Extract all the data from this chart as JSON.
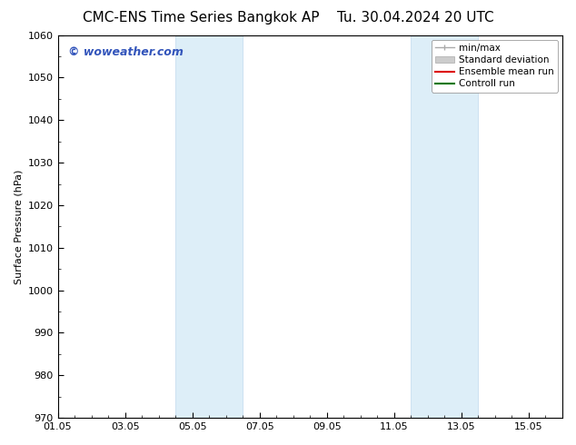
{
  "title_left": "CMC-ENS Time Series Bangkok AP",
  "title_right": "Tu. 30.04.2024 20 UTC",
  "ylabel": "Surface Pressure (hPa)",
  "ylim": [
    970,
    1060
  ],
  "yticks": [
    970,
    980,
    990,
    1000,
    1010,
    1020,
    1030,
    1040,
    1050,
    1060
  ],
  "xtick_labels": [
    "01.05",
    "03.05",
    "05.05",
    "07.05",
    "09.05",
    "11.05",
    "13.05",
    "15.05"
  ],
  "xtick_positions": [
    0,
    2,
    4,
    6,
    8,
    10,
    12,
    14
  ],
  "xlim": [
    0,
    15
  ],
  "shaded_bands": [
    {
      "x_start": 3.5,
      "x_end": 5.5
    },
    {
      "x_start": 10.5,
      "x_end": 12.5
    }
  ],
  "shaded_color": "#ddeef8",
  "shaded_edge_color": "#c0d8ee",
  "background_color": "#ffffff",
  "watermark_text": "© woweather.com",
  "watermark_color": "#3355bb",
  "legend_items": [
    {
      "label": "min/max",
      "color": "#aaaaaa",
      "lw": 1.5
    },
    {
      "label": "Standard deviation",
      "color": "#cccccc",
      "lw": 6
    },
    {
      "label": "Ensemble mean run",
      "color": "#dd0000",
      "lw": 1.5
    },
    {
      "label": "Controll run",
      "color": "#007700",
      "lw": 1.5
    }
  ],
  "title_fontsize": 11,
  "axis_fontsize": 8,
  "tick_fontsize": 8,
  "watermark_fontsize": 9,
  "legend_fontsize": 7.5
}
